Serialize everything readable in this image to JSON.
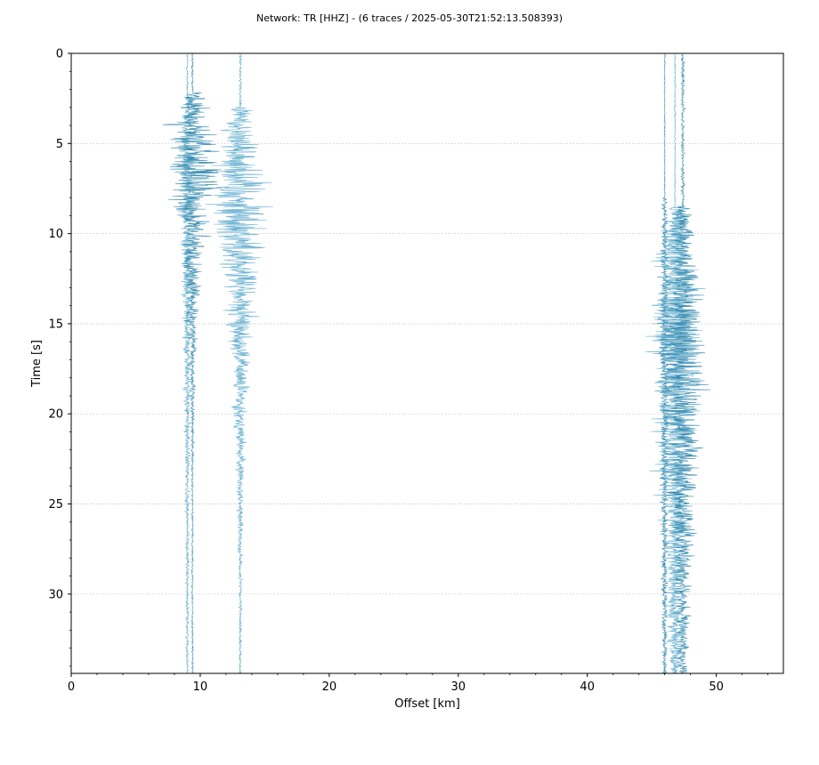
{
  "chart_data": {
    "type": "line",
    "title": "Network: TR [HHZ] - (6 traces / 2025-05-30T21:52:13.508393)",
    "xlabel": "Offset [km]",
    "ylabel": "Time [s]",
    "xlim": [
      0,
      55.2
    ],
    "ylim": [
      34.4,
      0
    ],
    "x_ticks": [
      0,
      10,
      20,
      30,
      40,
      50
    ],
    "y_ticks": [
      0,
      5,
      10,
      15,
      20,
      25,
      30
    ],
    "grid": "horizontal-dotted",
    "colors": {
      "trace": "#2a84aa",
      "trace_light": "#5aa9cc",
      "grid": "#c8c8c8"
    },
    "series": [
      {
        "offset_km": 9.0,
        "arrival_s": 2.4,
        "peak_amp_km": 1.2,
        "peak_time_s": 6.0,
        "noise_amp_km": 0.15,
        "decay_s": 14
      },
      {
        "offset_km": 9.4,
        "arrival_s": 2.2,
        "peak_amp_km": 4.0,
        "peak_time_s": 6.2,
        "noise_amp_km": 0.12,
        "decay_s": 5
      },
      {
        "offset_km": 13.1,
        "arrival_s": 3.0,
        "peak_amp_km": 4.6,
        "peak_time_s": 8.5,
        "noise_amp_km": 0.2,
        "decay_s": 7
      },
      {
        "offset_km": 46.0,
        "arrival_s": 8.0,
        "peak_amp_km": 0.9,
        "peak_time_s": 15.0,
        "noise_amp_km": 0.08,
        "decay_s": 20
      },
      {
        "offset_km": 46.8,
        "arrival_s": 8.5,
        "peak_amp_km": 4.2,
        "peak_time_s": 15.5,
        "noise_amp_km": 0.1,
        "decay_s": 12
      },
      {
        "offset_km": 47.4,
        "arrival_s": 8.5,
        "peak_amp_km": 3.2,
        "peak_time_s": 16.0,
        "noise_amp_km": 0.25,
        "decay_s": 14
      }
    ]
  }
}
